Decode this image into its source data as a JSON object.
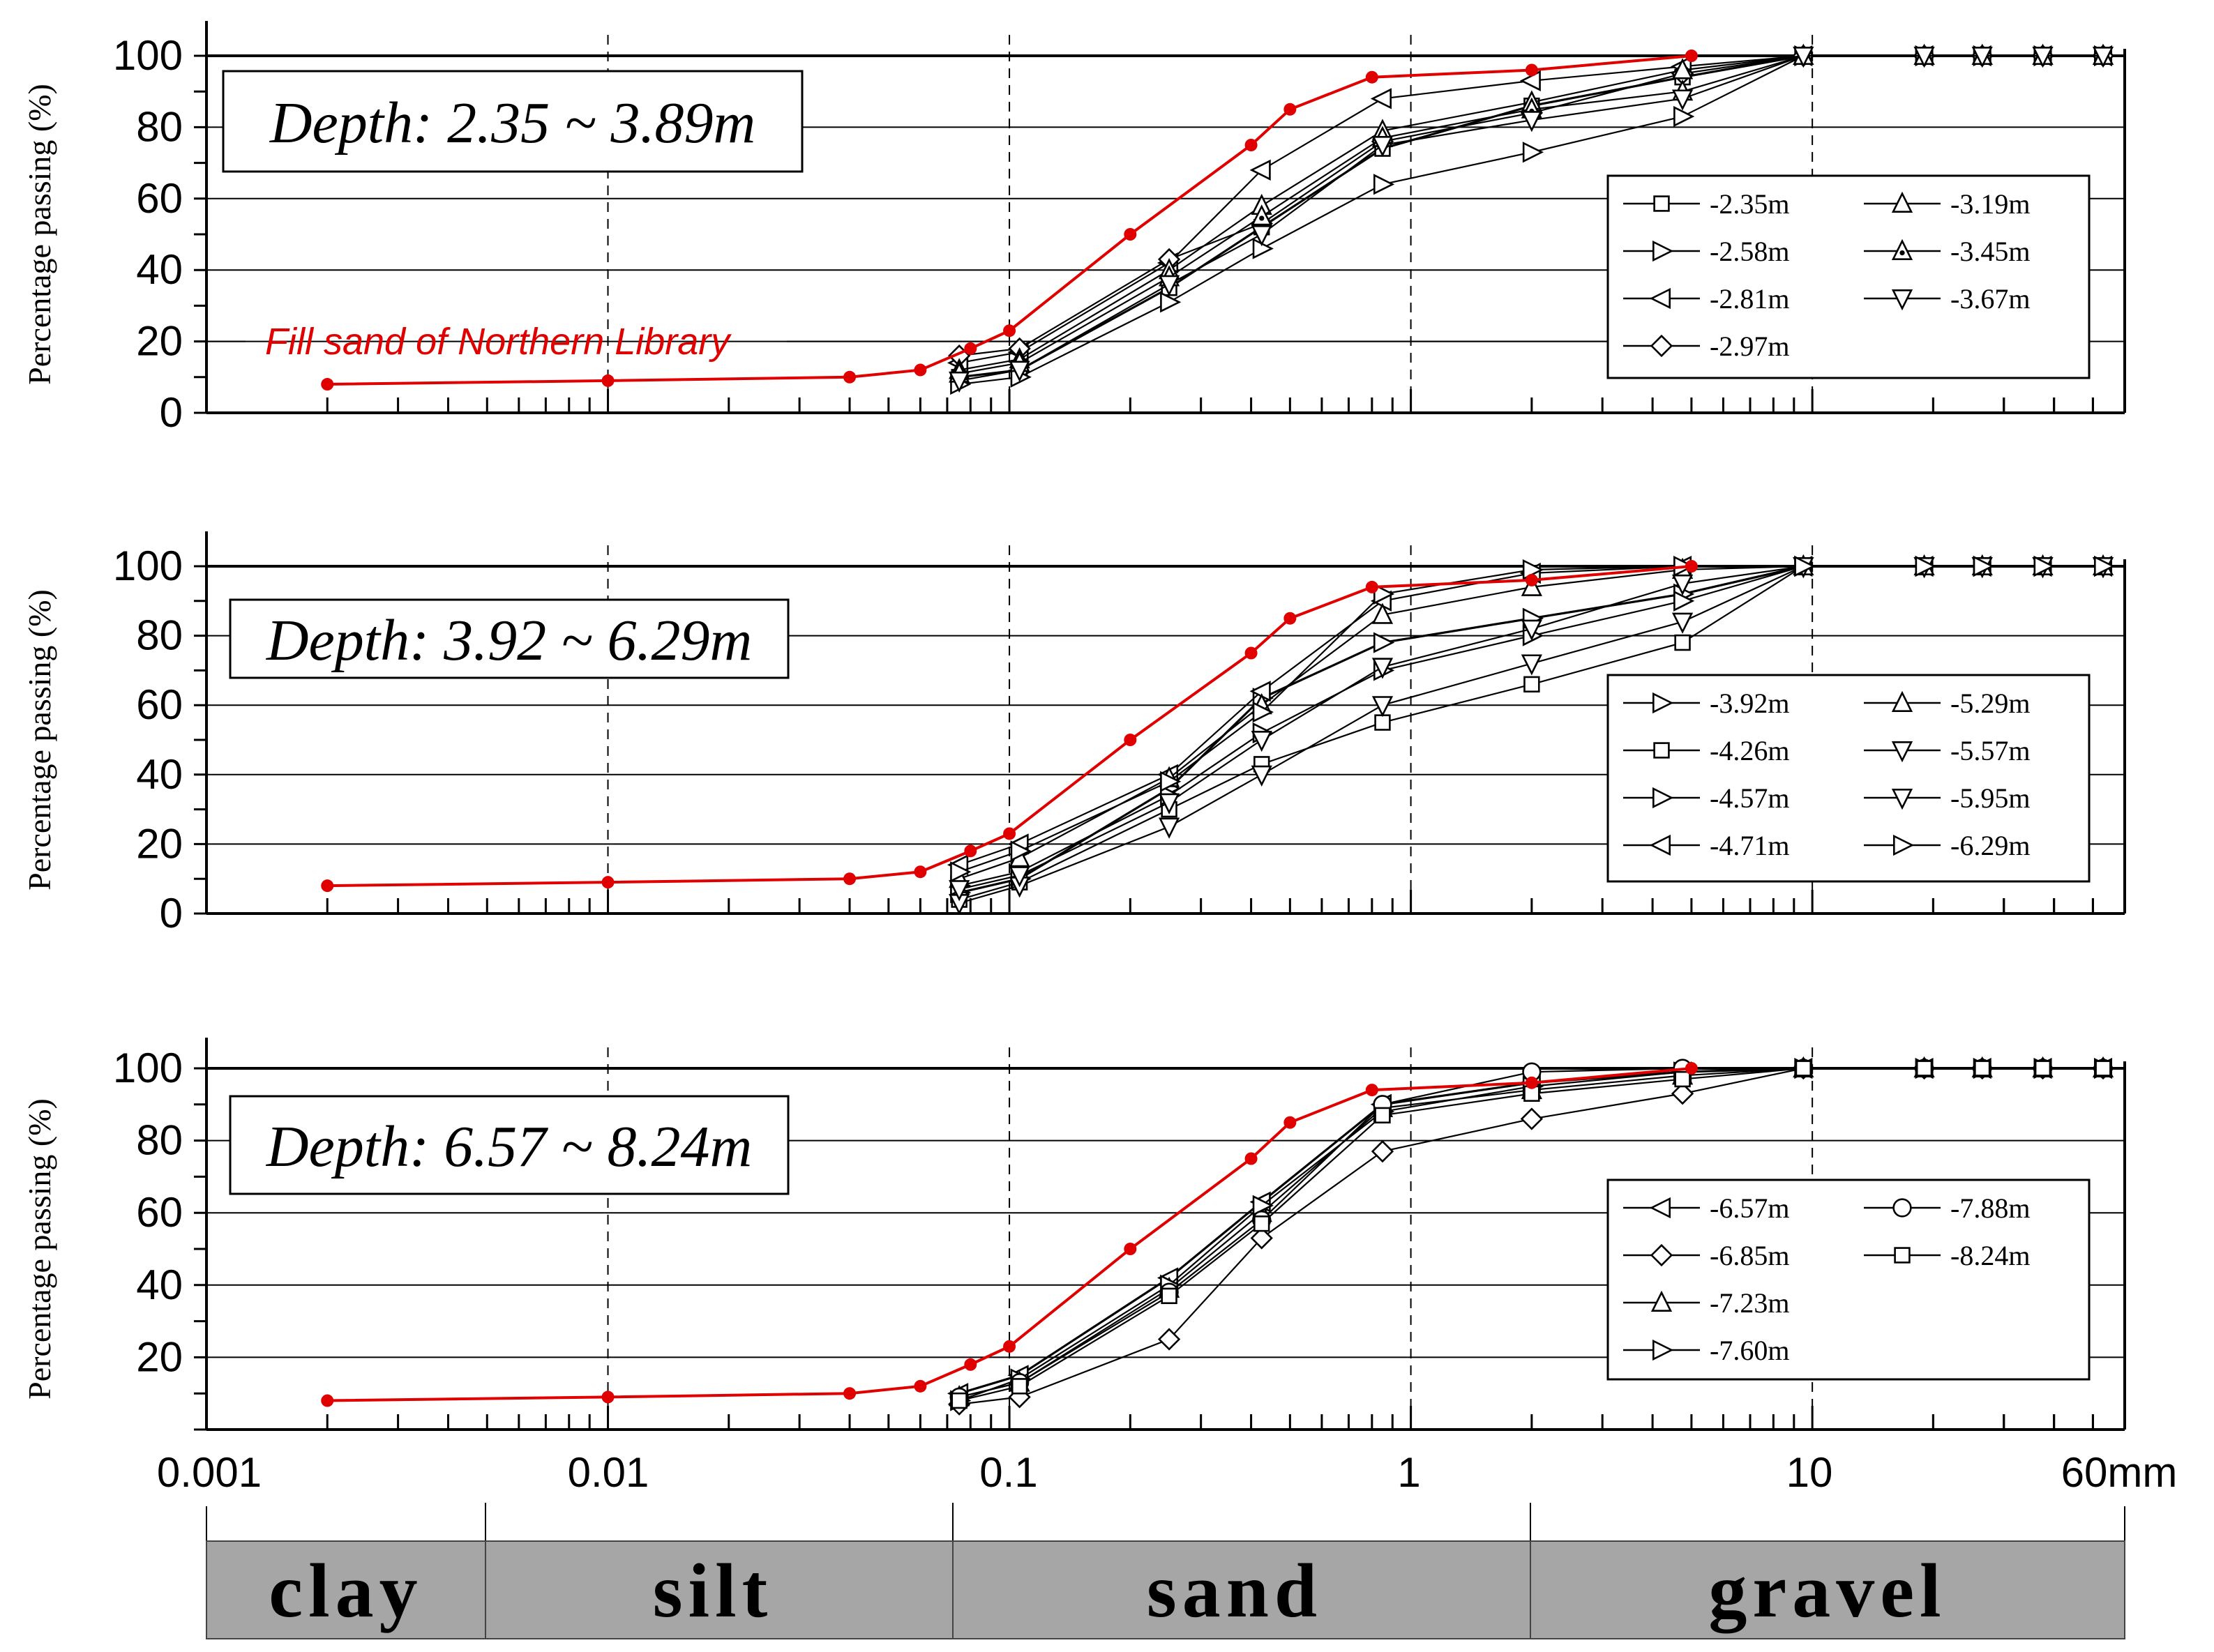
{
  "x_ticks": [
    "0.001",
    "0.01",
    "0.1",
    "1",
    "10",
    "60mm"
  ],
  "y_axis_label": "Percentage passing (%)",
  "soil_classes": [
    "clay",
    "silt",
    "sand",
    "gravel"
  ],
  "colors": {
    "fill_sand": "#e00000",
    "samples": "#000000",
    "soil_bar": "#a6a6a6"
  },
  "chart_data": [
    {
      "type": "line",
      "x_scale": "log",
      "xlim": [
        0.001,
        60
      ],
      "ylim": [
        0,
        100
      ],
      "yticks": [
        0,
        20,
        40,
        60,
        80,
        100
      ],
      "ylabel": "Percentage passing (%)",
      "depth_label": "Depth: 2.35 ~ 3.89m",
      "fill_label": "Fill sand of Northern Library",
      "legend_placement": "right",
      "fill": {
        "x": [
          0.002,
          0.01,
          0.04,
          0.06,
          0.08,
          0.1,
          0.2,
          0.4,
          0.5,
          0.8,
          2,
          5
        ],
        "y": [
          8,
          9,
          10,
          12,
          18,
          23,
          50,
          75,
          85,
          94,
          96,
          100
        ]
      },
      "series": [
        {
          "name": "-2.35m",
          "marker": "square",
          "x": [
            0.075,
            0.106,
            0.25,
            0.425,
            0.85,
            2,
            4.75,
            9.5,
            19,
            26.5,
            37.5,
            53
          ],
          "y": [
            10,
            12,
            35,
            52,
            74,
            86,
            94,
            100,
            100,
            100,
            100,
            100
          ]
        },
        {
          "name": "-2.58m",
          "marker": "tri-right",
          "x": [
            0.075,
            0.106,
            0.25,
            0.425,
            0.85,
            2,
            4.75,
            9.5,
            19,
            26.5,
            37.5,
            53
          ],
          "y": [
            8,
            10,
            31,
            46,
            64,
            73,
            83,
            100,
            100,
            100,
            100,
            100
          ]
        },
        {
          "name": "-2.81m",
          "marker": "tri-left",
          "x": [
            0.075,
            0.106,
            0.25,
            0.425,
            0.85,
            2,
            4.75,
            9.5,
            19,
            26.5,
            37.5,
            53
          ],
          "y": [
            14,
            17,
            42,
            68,
            88,
            93,
            97,
            100,
            100,
            100,
            100,
            100
          ]
        },
        {
          "name": "-2.97m",
          "marker": "diamond",
          "x": [
            0.075,
            0.106,
            0.25,
            0.425,
            0.85,
            2,
            4.75,
            9.5,
            19,
            26.5,
            37.5,
            53
          ],
          "y": [
            16,
            18,
            43,
            53,
            76,
            84,
            95,
            100,
            100,
            100,
            100,
            100
          ]
        },
        {
          "name": "-3.19m",
          "marker": "tri-up",
          "x": [
            0.075,
            0.106,
            0.25,
            0.425,
            0.85,
            2,
            4.75,
            9.5,
            19,
            26.5,
            37.5,
            53
          ],
          "y": [
            12,
            15,
            40,
            58,
            79,
            87,
            96,
            100,
            100,
            100,
            100,
            100
          ]
        },
        {
          "name": "-3.45m",
          "marker": "tri-up-dot",
          "x": [
            0.075,
            0.106,
            0.25,
            0.425,
            0.85,
            2,
            4.75,
            9.5,
            19,
            26.5,
            37.5,
            53
          ],
          "y": [
            11,
            14,
            38,
            55,
            77,
            85,
            90,
            100,
            100,
            100,
            100,
            100
          ]
        },
        {
          "name": "-3.67m",
          "marker": "tri-down",
          "x": [
            0.075,
            0.106,
            0.25,
            0.425,
            0.85,
            2,
            4.75,
            9.5,
            19,
            26.5,
            37.5,
            53
          ],
          "y": [
            9,
            12,
            36,
            50,
            75,
            82,
            88,
            100,
            100,
            100,
            100,
            100
          ]
        }
      ]
    },
    {
      "type": "line",
      "x_scale": "log",
      "xlim": [
        0.001,
        60
      ],
      "ylim": [
        0,
        100
      ],
      "yticks": [
        0,
        20,
        40,
        60,
        80,
        100
      ],
      "ylabel": "Percentage passing (%)",
      "depth_label": "Depth: 3.92 ~ 6.29m",
      "legend_placement": "right",
      "fill": {
        "x": [
          0.002,
          0.01,
          0.04,
          0.06,
          0.08,
          0.1,
          0.2,
          0.4,
          0.5,
          0.8,
          2,
          5
        ],
        "y": [
          8,
          9,
          10,
          12,
          18,
          23,
          50,
          75,
          85,
          94,
          96,
          100
        ]
      },
      "series": [
        {
          "name": "-3.92m",
          "marker": "tri-right",
          "x": [
            0.075,
            0.106,
            0.25,
            0.425,
            0.85,
            2,
            4.75,
            9.5,
            19,
            26.5,
            37.5,
            53
          ],
          "y": [
            6,
            10,
            36,
            62,
            78,
            85,
            92,
            100,
            100,
            100,
            100,
            100
          ]
        },
        {
          "name": "-4.26m",
          "marker": "square",
          "x": [
            0.075,
            0.106,
            0.25,
            0.425,
            0.85,
            2,
            4.75,
            9.5,
            19,
            26.5,
            37.5,
            53
          ],
          "y": [
            4,
            9,
            30,
            43,
            55,
            66,
            78,
            100,
            100,
            100,
            100,
            100
          ]
        },
        {
          "name": "-4.57m",
          "marker": "tri-right",
          "x": [
            0.075,
            0.106,
            0.25,
            0.425,
            0.85,
            2,
            4.75,
            9.5,
            19,
            26.5,
            37.5,
            53
          ],
          "y": [
            8,
            12,
            34,
            52,
            70,
            80,
            90,
            100,
            100,
            100,
            100,
            100
          ]
        },
        {
          "name": "-4.71m",
          "marker": "tri-left",
          "x": [
            0.075,
            0.106,
            0.25,
            0.425,
            0.85,
            2,
            4.75,
            9.5,
            19,
            26.5,
            37.5,
            53
          ],
          "y": [
            14,
            20,
            40,
            64,
            90,
            98,
            100,
            100,
            100,
            100,
            100,
            100
          ]
        },
        {
          "name": "-5.29m",
          "marker": "tri-up",
          "x": [
            0.075,
            0.106,
            0.25,
            0.425,
            0.85,
            2,
            4.75,
            9.5,
            19,
            26.5,
            37.5,
            53
          ],
          "y": [
            10,
            16,
            39,
            60,
            86,
            94,
            99,
            100,
            100,
            100,
            100,
            100
          ]
        },
        {
          "name": "-5.57m",
          "marker": "tri-down",
          "x": [
            0.075,
            0.106,
            0.25,
            0.425,
            0.85,
            2,
            4.75,
            9.5,
            19,
            26.5,
            37.5,
            53
          ],
          "y": [
            3,
            8,
            25,
            40,
            60,
            72,
            84,
            100,
            100,
            100,
            100,
            100
          ]
        },
        {
          "name": "-5.95m",
          "marker": "tri-down",
          "x": [
            0.075,
            0.106,
            0.25,
            0.425,
            0.85,
            2,
            4.75,
            9.5,
            19,
            26.5,
            37.5,
            53
          ],
          "y": [
            7,
            11,
            32,
            50,
            71,
            82,
            95,
            100,
            100,
            100,
            100,
            100
          ]
        },
        {
          "name": "-6.29m",
          "marker": "tri-right",
          "x": [
            0.075,
            0.106,
            0.25,
            0.425,
            0.85,
            2,
            4.75,
            9.5,
            19,
            26.5,
            37.5,
            53
          ],
          "y": [
            12,
            18,
            38,
            58,
            92,
            99,
            100,
            100,
            100,
            100,
            100,
            100
          ]
        }
      ]
    },
    {
      "type": "line",
      "x_scale": "log",
      "xlim": [
        0.001,
        60
      ],
      "ylim": [
        0,
        100
      ],
      "yticks": [
        20,
        40,
        60,
        80,
        100
      ],
      "ylabel": "Percentage passing (%)",
      "depth_label": "Depth: 6.57 ~ 8.24m",
      "legend_placement": "right",
      "fill": {
        "x": [
          0.002,
          0.01,
          0.04,
          0.06,
          0.08,
          0.1,
          0.2,
          0.4,
          0.5,
          0.8,
          2,
          5
        ],
        "y": [
          8,
          9,
          10,
          12,
          18,
          23,
          50,
          75,
          85,
          94,
          96,
          100
        ]
      },
      "series": [
        {
          "name": "-6.57m",
          "marker": "tri-left",
          "x": [
            0.075,
            0.106,
            0.25,
            0.425,
            0.85,
            2,
            4.75,
            9.5,
            19,
            26.5,
            37.5,
            53
          ],
          "y": [
            10,
            15,
            42,
            63,
            90,
            96,
            99,
            100,
            100,
            100,
            100,
            100
          ]
        },
        {
          "name": "-6.85m",
          "marker": "diamond",
          "x": [
            0.075,
            0.106,
            0.25,
            0.425,
            0.85,
            2,
            4.75,
            9.5,
            19,
            26.5,
            37.5,
            53
          ],
          "y": [
            7,
            9,
            25,
            53,
            77,
            86,
            93,
            100,
            100,
            100,
            100,
            100
          ]
        },
        {
          "name": "-7.23m",
          "marker": "tri-up",
          "x": [
            0.075,
            0.106,
            0.25,
            0.425,
            0.85,
            2,
            4.75,
            9.5,
            19,
            26.5,
            37.5,
            53
          ],
          "y": [
            9,
            13,
            39,
            60,
            89,
            94,
            98,
            100,
            100,
            100,
            100,
            100
          ]
        },
        {
          "name": "-7.60m",
          "marker": "tri-right",
          "x": [
            0.075,
            0.106,
            0.25,
            0.425,
            0.85,
            2,
            4.75,
            9.5,
            19,
            26.5,
            37.5,
            53
          ],
          "y": [
            8,
            14,
            40,
            62,
            88,
            95,
            99,
            100,
            100,
            100,
            100,
            100
          ]
        },
        {
          "name": "-7.88m",
          "marker": "circle",
          "x": [
            0.075,
            0.106,
            0.25,
            0.425,
            0.85,
            2,
            4.75,
            9.5,
            19,
            26.5,
            37.5,
            53
          ],
          "y": [
            9,
            13,
            38,
            58,
            90,
            99,
            100,
            100,
            100,
            100,
            100,
            100
          ]
        },
        {
          "name": "-8.24m",
          "marker": "square",
          "x": [
            0.075,
            0.106,
            0.25,
            0.425,
            0.85,
            2,
            4.75,
            9.5,
            19,
            26.5,
            37.5,
            53
          ],
          "y": [
            8,
            12,
            37,
            57,
            87,
            93,
            97,
            100,
            100,
            100,
            100,
            100
          ]
        }
      ]
    }
  ]
}
